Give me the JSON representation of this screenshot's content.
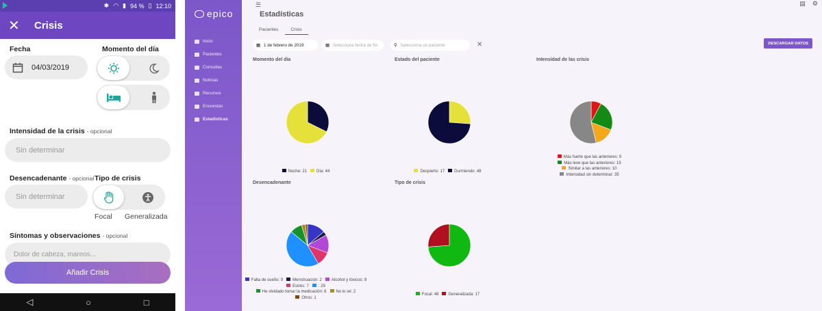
{
  "phone": {
    "status": {
      "battery": "94 %",
      "time": "12:10"
    },
    "appbar_title": "Crisis",
    "fecha_label": "Fecha",
    "fecha_value": "04/03/2019",
    "momento_label": "Momento del día",
    "intensidad_label": "Intensidad de la crisis",
    "intensidad_opt": "- opcional",
    "intensidad_placeholder": "Sin determinar",
    "desencadenante_label": "Desencadenante",
    "desencadenante_opt": "- opcional",
    "desencadenante_placeholder": "Sin determinar",
    "tipo_label": "Tipo de crisis",
    "tipo_focal": "Focal",
    "tipo_generalizada": "Generalizada",
    "sintomas_label": "Síntomas y observaciones",
    "sintomas_opt": "- opcional",
    "sintomas_placeholder": "Dolor de cabeza, mareos...",
    "add_button": "Añadir Crisis"
  },
  "web": {
    "logo": "epico",
    "nav": [
      "Inicio",
      "Pacientes",
      "Consultas",
      "Noticias",
      "Recursos",
      "Encuestas",
      "Estadísticas"
    ],
    "page_title": "Estadísticas",
    "tabs": [
      "Pacientes",
      "Crisis"
    ],
    "date_from": "1 de febrero de 2019",
    "date_to_placeholder": "Selecciona fecha de fin",
    "patient_placeholder": "Selecciona un paciente",
    "download_button": "DESCARGAR DATOS"
  },
  "chart_data": [
    {
      "type": "pie",
      "title": "Momento del día",
      "series": [
        {
          "name": "Noche",
          "value": 21,
          "color": "#0c0c3c"
        },
        {
          "name": "Día",
          "value": 44,
          "color": "#e6e03a"
        }
      ]
    },
    {
      "type": "pie",
      "title": "Estado del paciente",
      "series": [
        {
          "name": "Despierto",
          "value": 17,
          "color": "#e6e03a"
        },
        {
          "name": "Durmiendo",
          "value": 48,
          "color": "#0c0c3c"
        }
      ]
    },
    {
      "type": "pie",
      "title": "Intensidad de las crisis",
      "series": [
        {
          "name": "Más fuerte que las anteriores",
          "value": 5,
          "color": "#e01616"
        },
        {
          "name": "Más leve que las anteriores",
          "value": 15,
          "color": "#138a13"
        },
        {
          "name": "Similar a las anteriores",
          "value": 10,
          "color": "#f2a81a"
        },
        {
          "name": "Intensidad sin determinar",
          "value": 35,
          "color": "#878787"
        }
      ]
    },
    {
      "type": "pie",
      "title": "Desencadenante",
      "series": [
        {
          "name": "Falta de sueño",
          "value": 9,
          "color": "#3535c8"
        },
        {
          "name": "Menstruación",
          "value": 2,
          "color": "#1a1a4a"
        },
        {
          "name": "Alcohol y tóxicos",
          "value": 9,
          "color": "#b347d6"
        },
        {
          "name": "Estrés",
          "value": 7,
          "color": "#e0356a"
        },
        {
          "name": "",
          "value": 29,
          "color": "#1e90ff"
        },
        {
          "name": "He olvidado tomar la medicación",
          "value": 6,
          "color": "#15922a"
        },
        {
          "name": "No lo sé",
          "value": 2,
          "color": "#a89020"
        },
        {
          "name": "Otros",
          "value": 1,
          "color": "#7a4a10"
        }
      ]
    },
    {
      "type": "pie",
      "title": "Tipo de crisis",
      "series": [
        {
          "name": "Focal",
          "value": 48,
          "color": "#11b811"
        },
        {
          "name": "Generalizada",
          "value": 17,
          "color": "#b01020"
        }
      ]
    }
  ]
}
